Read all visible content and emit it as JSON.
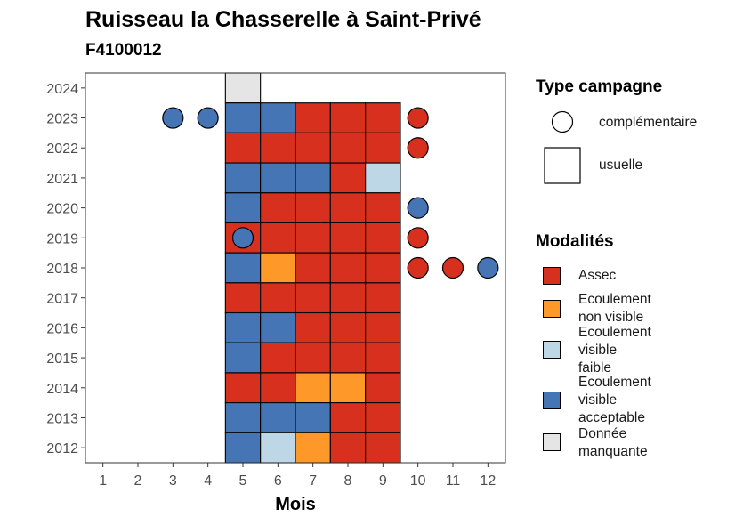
{
  "chart_data": {
    "type": "heatmap",
    "title": "Ruisseau la Chasserelle à Saint-Privé",
    "subtitle": "F4100012",
    "xlabel": "Mois",
    "ylabel": "",
    "x_ticks": [
      1,
      2,
      3,
      4,
      5,
      6,
      7,
      8,
      9,
      10,
      11,
      12
    ],
    "y_ticks": [
      2012,
      2013,
      2014,
      2015,
      2016,
      2017,
      2018,
      2019,
      2020,
      2021,
      2022,
      2023,
      2024
    ],
    "xlim": [
      0.5,
      12.5
    ],
    "ylim": [
      2011.5,
      2024.5
    ],
    "modalites": {
      "assec": {
        "label": "Assec",
        "color": "#d7301f"
      },
      "ecoulement_non_visible": {
        "label": "Ecoulement non visible",
        "color": "#fe9929"
      },
      "ecoulement_visible_faible": {
        "label": "Ecoulement visible faible",
        "color": "#bdd7e7"
      },
      "ecoulement_visible_acceptable": {
        "label": "Ecoulement visible acceptable",
        "color": "#4575b4"
      },
      "donnee_manquante": {
        "label": "Donnée manquante",
        "color": "#e5e5e5"
      }
    },
    "campagne_types": {
      "complementaire": {
        "label": "complémentaire",
        "shape": "circle"
      },
      "usuelle": {
        "label": "usuelle",
        "shape": "square"
      }
    },
    "usuelle_points": [
      {
        "year": 2024,
        "month": 5,
        "modalite": "donnee_manquante"
      },
      {
        "year": 2023,
        "month": 5,
        "modalite": "ecoulement_visible_acceptable"
      },
      {
        "year": 2023,
        "month": 6,
        "modalite": "ecoulement_visible_acceptable"
      },
      {
        "year": 2023,
        "month": 7,
        "modalite": "assec"
      },
      {
        "year": 2023,
        "month": 8,
        "modalite": "assec"
      },
      {
        "year": 2023,
        "month": 9,
        "modalite": "assec"
      },
      {
        "year": 2022,
        "month": 5,
        "modalite": "assec"
      },
      {
        "year": 2022,
        "month": 6,
        "modalite": "assec"
      },
      {
        "year": 2022,
        "month": 7,
        "modalite": "assec"
      },
      {
        "year": 2022,
        "month": 8,
        "modalite": "assec"
      },
      {
        "year": 2022,
        "month": 9,
        "modalite": "assec"
      },
      {
        "year": 2021,
        "month": 5,
        "modalite": "ecoulement_visible_acceptable"
      },
      {
        "year": 2021,
        "month": 6,
        "modalite": "ecoulement_visible_acceptable"
      },
      {
        "year": 2021,
        "month": 7,
        "modalite": "ecoulement_visible_acceptable"
      },
      {
        "year": 2021,
        "month": 8,
        "modalite": "assec"
      },
      {
        "year": 2021,
        "month": 9,
        "modalite": "ecoulement_visible_faible"
      },
      {
        "year": 2020,
        "month": 5,
        "modalite": "ecoulement_visible_acceptable"
      },
      {
        "year": 2020,
        "month": 6,
        "modalite": "assec"
      },
      {
        "year": 2020,
        "month": 7,
        "modalite": "assec"
      },
      {
        "year": 2020,
        "month": 8,
        "modalite": "assec"
      },
      {
        "year": 2020,
        "month": 9,
        "modalite": "assec"
      },
      {
        "year": 2019,
        "month": 5,
        "modalite": "assec"
      },
      {
        "year": 2019,
        "month": 6,
        "modalite": "assec"
      },
      {
        "year": 2019,
        "month": 7,
        "modalite": "assec"
      },
      {
        "year": 2019,
        "month": 8,
        "modalite": "assec"
      },
      {
        "year": 2019,
        "month": 9,
        "modalite": "assec"
      },
      {
        "year": 2018,
        "month": 5,
        "modalite": "ecoulement_visible_acceptable"
      },
      {
        "year": 2018,
        "month": 6,
        "modalite": "ecoulement_non_visible"
      },
      {
        "year": 2018,
        "month": 7,
        "modalite": "assec"
      },
      {
        "year": 2018,
        "month": 8,
        "modalite": "assec"
      },
      {
        "year": 2018,
        "month": 9,
        "modalite": "assec"
      },
      {
        "year": 2017,
        "month": 5,
        "modalite": "assec"
      },
      {
        "year": 2017,
        "month": 6,
        "modalite": "assec"
      },
      {
        "year": 2017,
        "month": 7,
        "modalite": "assec"
      },
      {
        "year": 2017,
        "month": 8,
        "modalite": "assec"
      },
      {
        "year": 2017,
        "month": 9,
        "modalite": "assec"
      },
      {
        "year": 2016,
        "month": 5,
        "modalite": "ecoulement_visible_acceptable"
      },
      {
        "year": 2016,
        "month": 6,
        "modalite": "ecoulement_visible_acceptable"
      },
      {
        "year": 2016,
        "month": 7,
        "modalite": "assec"
      },
      {
        "year": 2016,
        "month": 8,
        "modalite": "assec"
      },
      {
        "year": 2016,
        "month": 9,
        "modalite": "assec"
      },
      {
        "year": 2015,
        "month": 5,
        "modalite": "ecoulement_visible_acceptable"
      },
      {
        "year": 2015,
        "month": 6,
        "modalite": "assec"
      },
      {
        "year": 2015,
        "month": 7,
        "modalite": "assec"
      },
      {
        "year": 2015,
        "month": 8,
        "modalite": "assec"
      },
      {
        "year": 2015,
        "month": 9,
        "modalite": "assec"
      },
      {
        "year": 2014,
        "month": 5,
        "modalite": "assec"
      },
      {
        "year": 2014,
        "month": 6,
        "modalite": "assec"
      },
      {
        "year": 2014,
        "month": 7,
        "modalite": "ecoulement_non_visible"
      },
      {
        "year": 2014,
        "month": 8,
        "modalite": "ecoulement_non_visible"
      },
      {
        "year": 2014,
        "month": 9,
        "modalite": "assec"
      },
      {
        "year": 2013,
        "month": 5,
        "modalite": "ecoulement_visible_acceptable"
      },
      {
        "year": 2013,
        "month": 6,
        "modalite": "ecoulement_visible_acceptable"
      },
      {
        "year": 2013,
        "month": 7,
        "modalite": "ecoulement_visible_acceptable"
      },
      {
        "year": 2013,
        "month": 8,
        "modalite": "assec"
      },
      {
        "year": 2013,
        "month": 9,
        "modalite": "assec"
      },
      {
        "year": 2012,
        "month": 5,
        "modalite": "ecoulement_visible_acceptable"
      },
      {
        "year": 2012,
        "month": 6,
        "modalite": "ecoulement_visible_faible"
      },
      {
        "year": 2012,
        "month": 7,
        "modalite": "ecoulement_non_visible"
      },
      {
        "year": 2012,
        "month": 8,
        "modalite": "assec"
      },
      {
        "year": 2012,
        "month": 9,
        "modalite": "assec"
      }
    ],
    "complementaire_points": [
      {
        "year": 2023,
        "month": 3,
        "modalite": "ecoulement_visible_acceptable"
      },
      {
        "year": 2023,
        "month": 4,
        "modalite": "ecoulement_visible_acceptable"
      },
      {
        "year": 2023,
        "month": 10,
        "modalite": "assec"
      },
      {
        "year": 2022,
        "month": 10,
        "modalite": "assec"
      },
      {
        "year": 2020,
        "month": 10,
        "modalite": "ecoulement_visible_acceptable"
      },
      {
        "year": 2019,
        "month": 5,
        "modalite": "ecoulement_visible_acceptable"
      },
      {
        "year": 2019,
        "month": 10,
        "modalite": "assec"
      },
      {
        "year": 2018,
        "month": 10,
        "modalite": "assec"
      },
      {
        "year": 2018,
        "month": 11,
        "modalite": "assec"
      },
      {
        "year": 2018,
        "month": 12,
        "modalite": "ecoulement_visible_acceptable"
      }
    ],
    "legend": {
      "placement": "right",
      "type_title": "Type campagne",
      "modalites_title": "Modalités",
      "modalites_lines": {
        "assec": [
          "Assec"
        ],
        "ecoulement_non_visible": [
          "Ecoulement",
          "non visible"
        ],
        "ecoulement_visible_faible": [
          "Ecoulement",
          "visible",
          "faible"
        ],
        "ecoulement_visible_acceptable": [
          "Ecoulement",
          "visible",
          "acceptable"
        ],
        "donnee_manquante": [
          "Donnée",
          "manquante"
        ]
      }
    },
    "grid": false
  }
}
